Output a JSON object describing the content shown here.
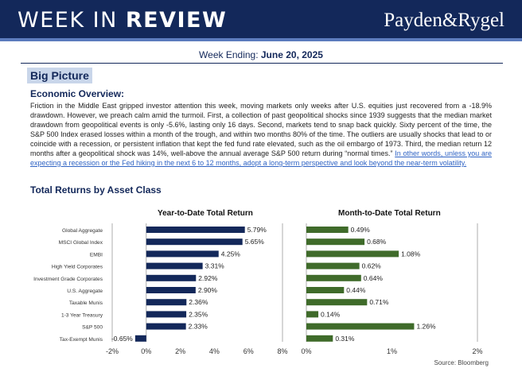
{
  "header": {
    "title_light": "WEEK IN ",
    "title_bold": "REVIEW",
    "logo": "Payden&Rygel"
  },
  "week": {
    "label": "Week Ending: ",
    "date": "June 20, 2025"
  },
  "big_picture": "Big Picture",
  "economic_overview": {
    "heading": "Economic Overview:",
    "body": "Friction in the Middle East gripped investor attention this week, moving markets only weeks after U.S. equities just recovered from a -18.9% drawdown. However, we preach calm amid the turmoil. First, a collection of past geopolitical shocks since 1939 suggests that the median market drawdown from geopolitical events is only -5.6%, lasting only 16 days. Second, markets tend to snap back quickly. Sixty percent of the time, the S&P 500 Index erased losses within a month of the trough, and within two months 80% of the time. The outliers are usually shocks that lead to or coincide with a recession, or persistent inflation that kept the fed fund rate elevated, such as the oil embargo of 1973. Third, the median return 12 months after a geopolitical shock was 14%, well-above the annual average S&P 500 return during “normal times.” ",
    "link": "In other words, unless you are expecting a recession or the Fed hiking in the next 6 to 12 months, adopt a long-term perspective and look beyond the near-term volatility."
  },
  "total_returns_heading": "Total Returns by Asset Class",
  "source": "Source: Bloomberg",
  "colors": {
    "navy": "#13285a",
    "ytd_bar": "#13285a",
    "mtd_bar": "#3f6b2a",
    "link": "#2f63c4"
  },
  "chart_data": [
    {
      "type": "bar",
      "orientation": "horizontal",
      "title": "Year-to-Date Total Return",
      "categories": [
        "Global Aggregate",
        "MSCI Global Index",
        "EMBI",
        "High Yield Corporates",
        "Investment Grade Corporates",
        "U.S. Aggregate",
        "Taxable Munis",
        "1-3 Year Treasury",
        "S&P 500",
        "Tax-Exempt Munis"
      ],
      "values": [
        5.79,
        5.65,
        4.25,
        3.31,
        2.92,
        2.9,
        2.36,
        2.35,
        2.33,
        -0.65
      ],
      "value_labels": [
        "5.79%",
        "5.65%",
        "4.25%",
        "3.31%",
        "2.92%",
        "2.90%",
        "2.36%",
        "2.35%",
        "2.33%",
        "-0.65%"
      ],
      "xlim": [
        -2,
        8
      ],
      "ticks": [
        -2,
        0,
        2,
        4,
        6,
        8
      ],
      "tick_labels": [
        "-2%",
        "0%",
        "2%",
        "4%",
        "6%",
        "8%"
      ],
      "color": "#13285a"
    },
    {
      "type": "bar",
      "orientation": "horizontal",
      "title": "Month-to-Date Total Return",
      "categories": [
        "Global Aggregate",
        "MSCI Global Index",
        "EMBI",
        "High Yield Corporates",
        "Investment Grade Corporates",
        "U.S. Aggregate",
        "Taxable Munis",
        "1-3 Year Treasury",
        "S&P 500",
        "Tax-Exempt Munis"
      ],
      "values": [
        0.49,
        0.68,
        1.08,
        0.62,
        0.64,
        0.44,
        0.71,
        0.14,
        1.26,
        0.31
      ],
      "value_labels": [
        "0.49%",
        "0.68%",
        "1.08%",
        "0.62%",
        "0.64%",
        "0.44%",
        "0.71%",
        "0.14%",
        "1.26%",
        "0.31%"
      ],
      "xlim": [
        0,
        2
      ],
      "ticks": [
        0,
        1,
        2
      ],
      "tick_labels": [
        "0%",
        "1%",
        "2%"
      ],
      "color": "#3f6b2a"
    }
  ]
}
